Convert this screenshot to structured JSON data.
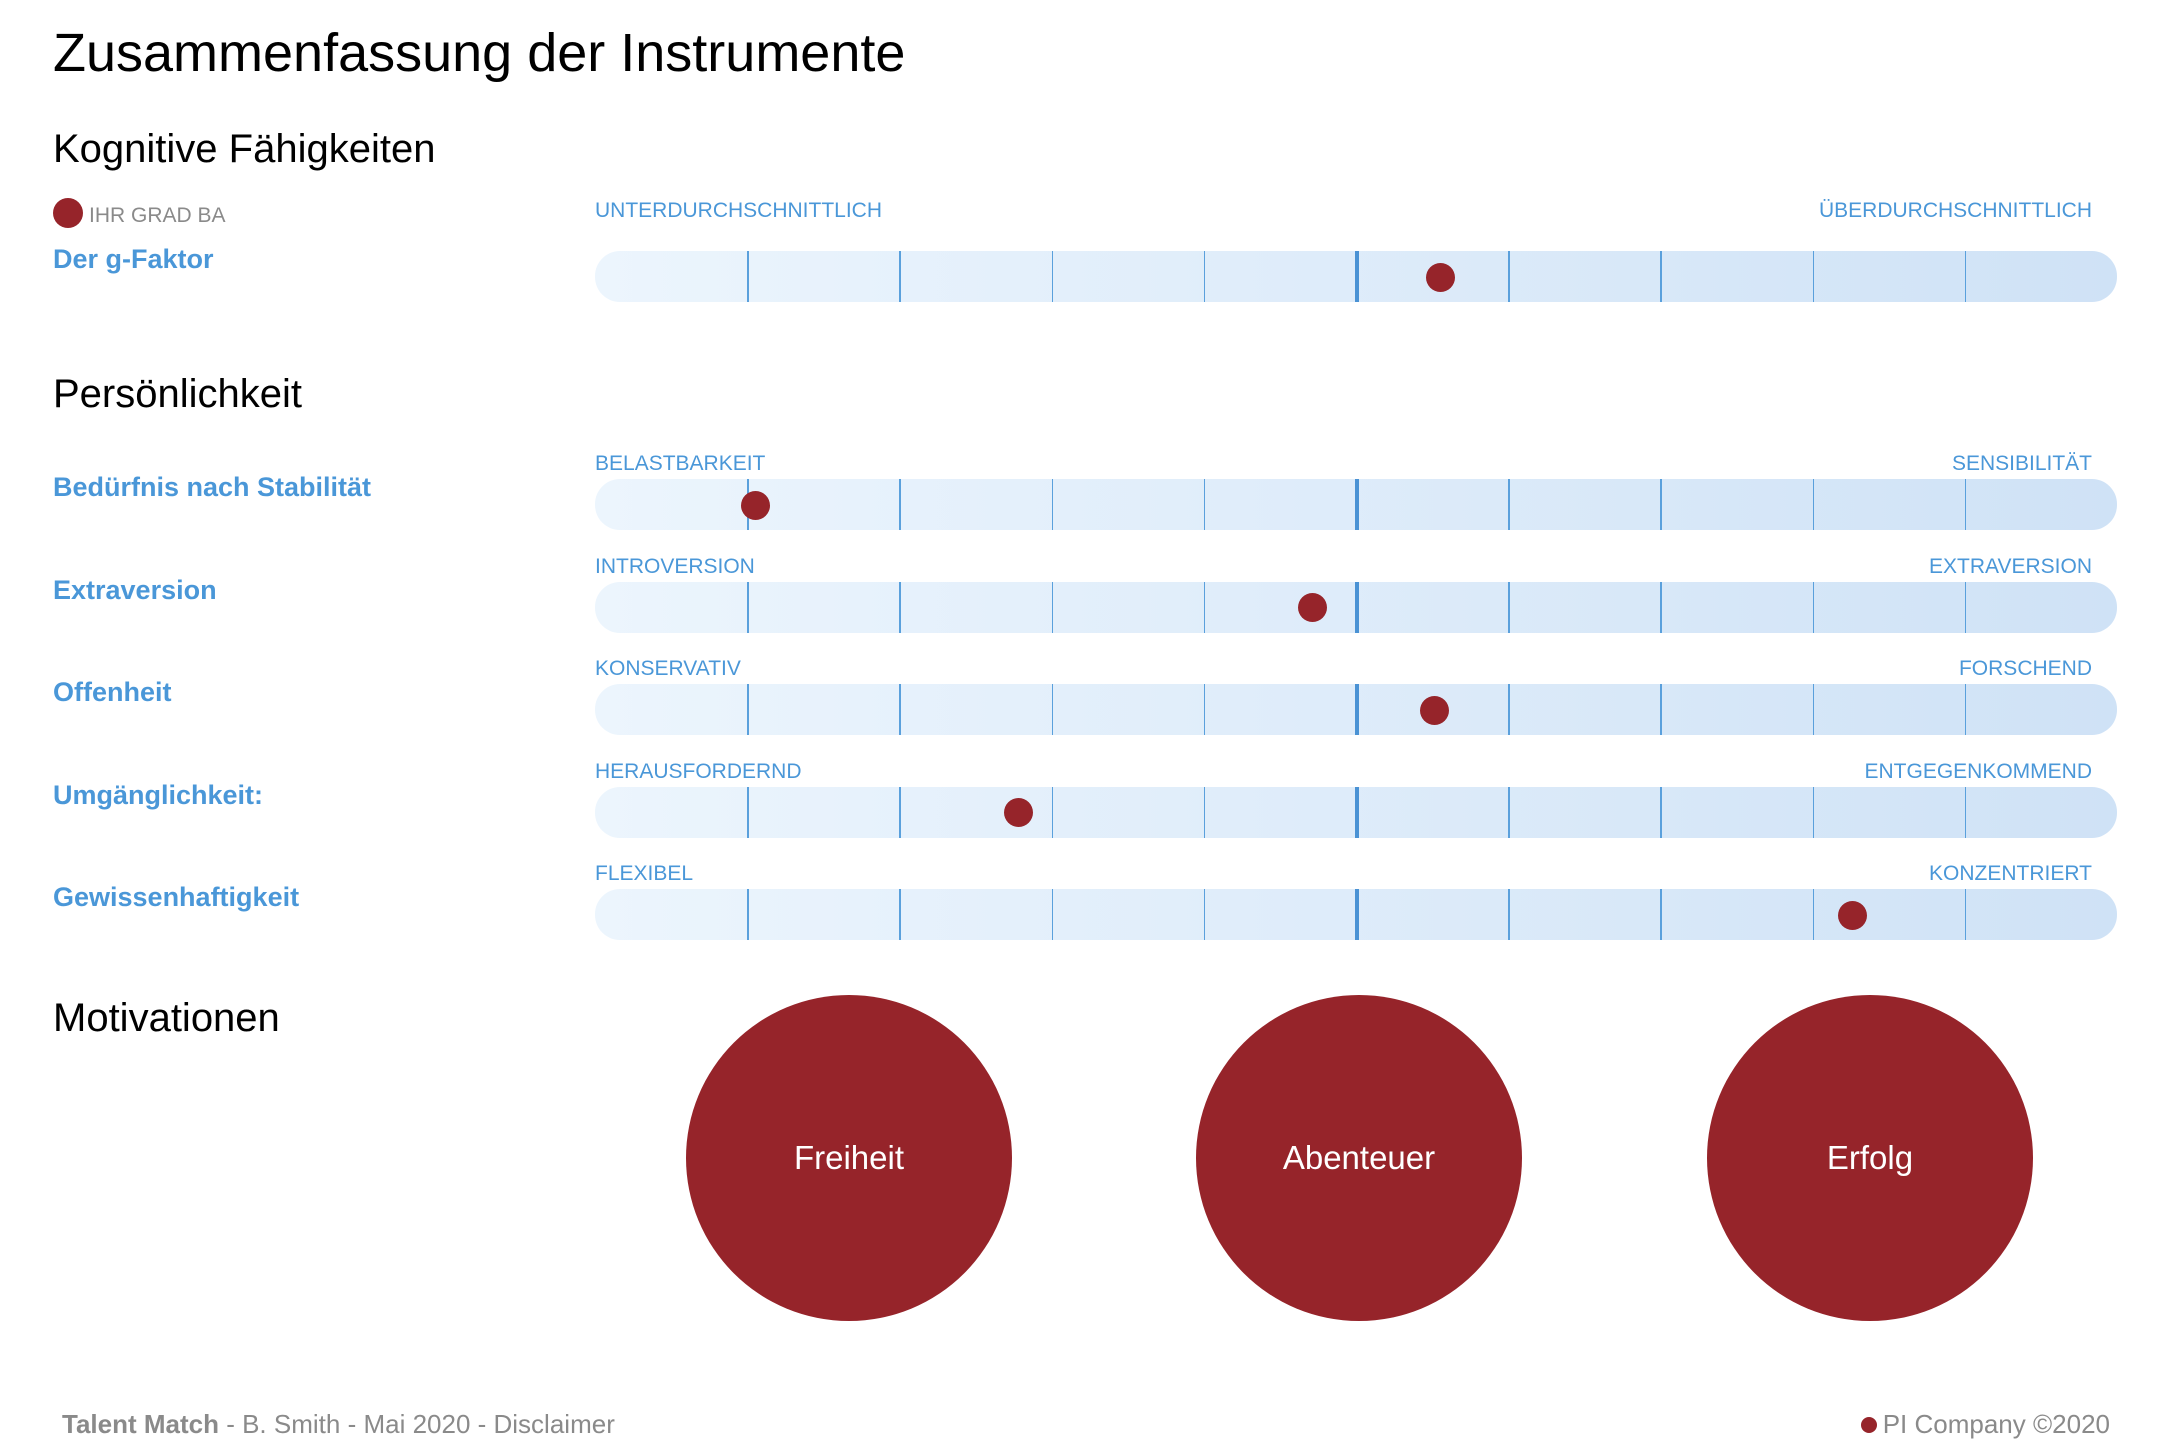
{
  "title": "Zusammenfassung der Instrumente",
  "colors": {
    "accent": "#96242a",
    "label_blue": "#4a97d8",
    "track_start": "#ecf5fd",
    "track_end": "#cfe2f6"
  },
  "scale": {
    "min": 0,
    "max": 10,
    "divisions": 10
  },
  "cognitive": {
    "heading": "Kognitive Fähigkeiten",
    "legend": "IHR GRAD BA",
    "rows": [
      {
        "label": "Der g-Faktor",
        "left": "UNTERDURCHSCHNITTLICH",
        "right": "ÜBERDURCHSCHNITTLICH",
        "score": 5.55
      }
    ]
  },
  "personality": {
    "heading": "Persönlichkeit",
    "rows": [
      {
        "label": "Bedürfnis nach Stabilität",
        "left": "BELASTBARKEIT",
        "right": "SENSIBILITÄT",
        "score": 1.05
      },
      {
        "label": "Extraversion",
        "left": "INTROVERSION",
        "right": "EXTRAVERSION",
        "score": 4.71
      },
      {
        "label": "Offenheit",
        "left": "KONSERVATIV",
        "right": "FORSCHEND",
        "score": 5.51
      },
      {
        "label": "Umgänglichkeit:",
        "left": "HERAUSFORDERND",
        "right": "ENTGEGENKOMMEND",
        "score": 2.78
      },
      {
        "label": "Gewissenhaftigkeit",
        "left": "FLEXIBEL",
        "right": "KONZENTRIERT",
        "score": 8.26
      }
    ]
  },
  "motivations": {
    "heading": "Motivationen",
    "items": [
      "Freiheit",
      "Abenteuer",
      "Erfolg"
    ]
  },
  "footer": {
    "product": "Talent Match",
    "details": " - B. Smith - Mai 2020 - Disclaimer",
    "company": "PI Company ©2020"
  }
}
